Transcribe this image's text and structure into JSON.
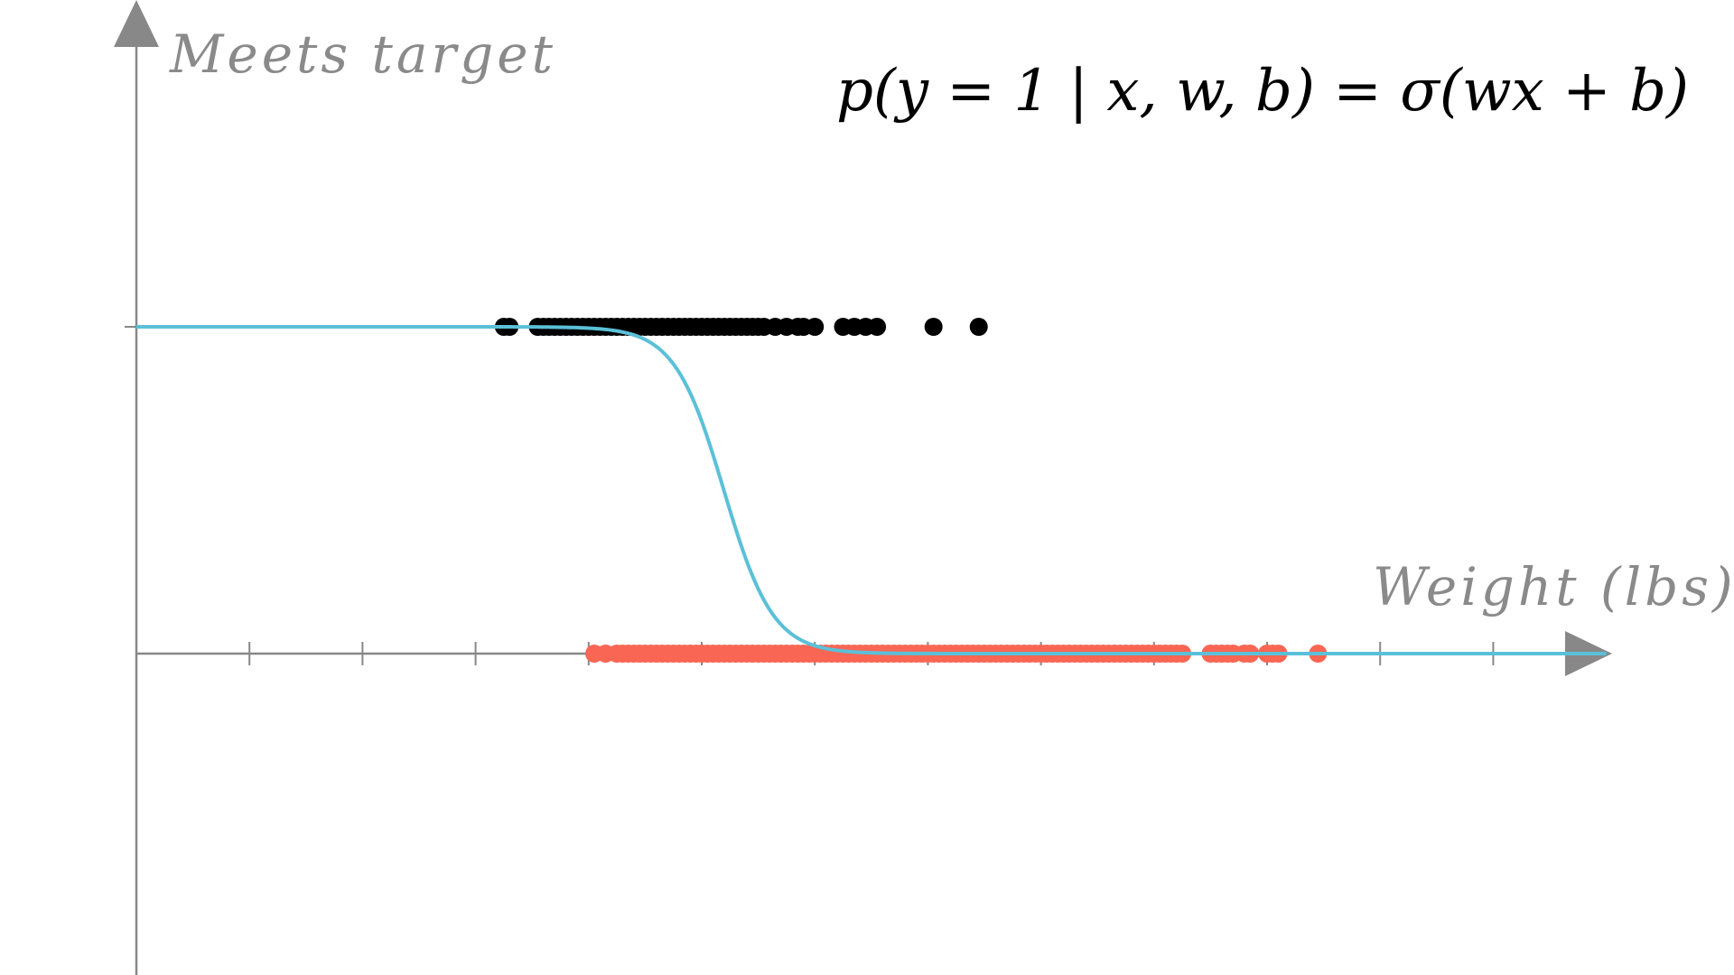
{
  "colors": {
    "axis": "#888888",
    "curve": "#5bc0d8",
    "positive_points": "#000000",
    "negative_points": "#f96654",
    "axis_text": "#8a8a8a",
    "formula_text": "#000000"
  },
  "chart_data": {
    "type": "scatter",
    "xlabel": "Weight (lbs)",
    "ylabel": "Meets target",
    "annotation": "p(y = 1 | x, w, b) = σ(wx + b)",
    "xlim": [
      0,
      13
    ],
    "ylim": [
      -1,
      1
    ],
    "x_ticks": [
      1,
      2,
      3,
      4,
      5,
      6,
      7,
      8,
      9,
      10,
      11,
      12
    ],
    "y_ticks": [
      1
    ],
    "grid": false,
    "legend": "none",
    "curve": {
      "type": "sigmoid",
      "w": -4.6,
      "b": 23.9,
      "x_range": [
        0,
        13
      ]
    },
    "series": [
      {
        "label_class": 1,
        "y": 1,
        "x": [
          3.25,
          3.3,
          3.55,
          3.6,
          3.65,
          3.7,
          3.75,
          3.8,
          3.85,
          3.9,
          3.95,
          4.0,
          4.05,
          4.1,
          4.15,
          4.2,
          4.25,
          4.3,
          4.35,
          4.4,
          4.45,
          4.5,
          4.55,
          4.6,
          4.65,
          4.7,
          4.75,
          4.8,
          4.85,
          4.9,
          4.95,
          5.0,
          5.05,
          5.1,
          5.15,
          5.2,
          5.25,
          5.3,
          5.35,
          5.4,
          5.45,
          5.5,
          5.55,
          5.65,
          5.75,
          5.85,
          5.9,
          6.0,
          6.25,
          6.35,
          6.45,
          6.55,
          7.05,
          7.45
        ]
      },
      {
        "label_class": 0,
        "y": 0,
        "x": [
          4.05,
          4.15,
          4.25,
          4.3,
          4.35,
          4.4,
          4.45,
          4.5,
          4.55,
          4.6,
          4.65,
          4.7,
          4.75,
          4.8,
          4.85,
          4.9,
          4.95,
          5.0,
          5.05,
          5.1,
          5.15,
          5.2,
          5.25,
          5.3,
          5.35,
          5.4,
          5.45,
          5.5,
          5.55,
          5.6,
          5.65,
          5.7,
          5.75,
          5.8,
          5.85,
          5.9,
          5.95,
          6.0,
          6.05,
          6.1,
          6.15,
          6.2,
          6.25,
          6.3,
          6.35,
          6.4,
          6.45,
          6.5,
          6.55,
          6.6,
          6.65,
          6.7,
          6.75,
          6.8,
          6.85,
          6.9,
          6.95,
          7.0,
          7.05,
          7.1,
          7.15,
          7.2,
          7.25,
          7.3,
          7.35,
          7.4,
          7.45,
          7.5,
          7.55,
          7.6,
          7.65,
          7.7,
          7.75,
          7.8,
          7.85,
          7.9,
          7.95,
          8.0,
          8.05,
          8.1,
          8.15,
          8.2,
          8.25,
          8.3,
          8.35,
          8.4,
          8.45,
          8.5,
          8.55,
          8.6,
          8.65,
          8.7,
          8.75,
          8.8,
          8.85,
          8.9,
          8.95,
          9.0,
          9.05,
          9.1,
          9.15,
          9.2,
          9.25,
          9.5,
          9.55,
          9.6,
          9.65,
          9.7,
          9.8,
          9.85,
          10.0,
          10.05,
          10.1,
          10.45
        ]
      }
    ]
  }
}
